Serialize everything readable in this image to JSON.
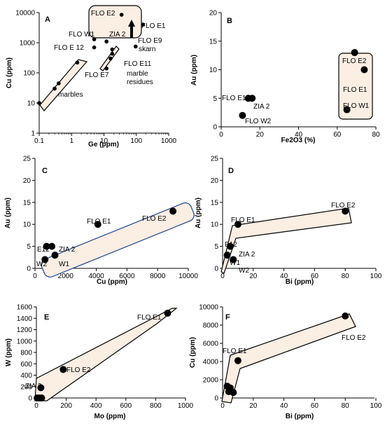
{
  "chart_data": [
    {
      "panel": "A",
      "type": "scatter",
      "xscale": "log",
      "yscale": "log",
      "xlabel": "Ge (ppm)",
      "ylabel": "Cu (ppm)",
      "xlim": [
        0.1,
        1000
      ],
      "ylim": [
        1,
        10000
      ],
      "xticks": [
        "0.1",
        "1",
        "10",
        "100",
        "1000"
      ],
      "yticks": [
        "1",
        "10",
        "100",
        "1000",
        "10000"
      ],
      "points": [
        [
          0.1,
          10
        ],
        [
          0.3,
          30
        ],
        [
          0.4,
          45
        ],
        [
          1.5,
          220
        ],
        [
          5,
          1300
        ],
        [
          5,
          700
        ],
        [
          12,
          1100
        ],
        [
          18,
          600
        ],
        [
          18,
          430
        ],
        [
          35,
          8500
        ],
        [
          95,
          750
        ],
        [
          160,
          4000
        ],
        [
          16,
          300
        ],
        [
          12,
          140
        ]
      ],
      "annotations": [
        "FLO E2",
        "FLO E1",
        "FLO W1",
        "ZIA 2",
        "FLO E 12",
        "FLO E9",
        "skarn",
        "FLO E11",
        "FLO E7",
        "marble",
        "residues",
        "marbles"
      ]
    },
    {
      "panel": "B",
      "type": "scatter",
      "xlabel": "Fe2O3 (%)",
      "ylabel": "Au (ppm)",
      "xlim": [
        0,
        80
      ],
      "ylim": [
        0,
        20
      ],
      "xticks": [
        "0",
        "20",
        "40",
        "60",
        "80"
      ],
      "yticks": [
        "0",
        "5",
        "10",
        "15",
        "20"
      ],
      "points": [
        [
          11,
          2
        ],
        [
          14,
          5
        ],
        [
          16,
          5
        ],
        [
          65,
          3
        ],
        [
          69,
          13
        ],
        [
          74,
          10
        ]
      ],
      "annotations": [
        "FLO E12",
        "ZIA 2",
        "FLO W2",
        "FLO E2",
        "FLO E1",
        "FLO W1"
      ]
    },
    {
      "panel": "C",
      "type": "scatter",
      "xlabel": "Cu (ppm)",
      "ylabel": "Au (ppm)",
      "xlim": [
        0,
        10000
      ],
      "ylim": [
        0,
        25
      ],
      "xticks": [
        "0",
        "2000",
        "4000",
        "6000",
        "8000",
        "10000"
      ],
      "yticks": [
        "0",
        "5",
        "10",
        "15",
        "20",
        "25"
      ],
      "points": [
        [
          650,
          2
        ],
        [
          750,
          5
        ],
        [
          1100,
          5
        ],
        [
          1300,
          3
        ],
        [
          4100,
          10
        ],
        [
          9000,
          13
        ]
      ],
      "annotations": [
        "FLO E1",
        "FLO E2",
        "E12",
        "ZIA 2",
        "W2",
        "W1"
      ]
    },
    {
      "panel": "D",
      "type": "scatter",
      "xlabel": "Bi (ppm)",
      "ylabel": "Au (ppm)",
      "xlim": [
        0,
        100
      ],
      "ylim": [
        0,
        25
      ],
      "xticks": [
        "0",
        "20",
        "40",
        "60",
        "80",
        "100"
      ],
      "yticks": [
        "0",
        "5",
        "10",
        "15",
        "20",
        "25"
      ],
      "points": [
        [
          3,
          3
        ],
        [
          5,
          5
        ],
        [
          7,
          2
        ],
        [
          10,
          10
        ],
        [
          80,
          13
        ]
      ],
      "annotations": [
        "FLO E2",
        "FLO E1",
        "E12",
        "ZIA 2",
        "W1",
        "W2"
      ]
    },
    {
      "panel": "E",
      "type": "scatter",
      "xlabel": "Mo (ppm)",
      "ylabel": "W (ppm)",
      "xlim": [
        0,
        1000
      ],
      "ylim": [
        0,
        1600
      ],
      "xticks": [
        "0",
        "200",
        "400",
        "600",
        "800",
        "1000"
      ],
      "yticks": [
        "0",
        "200",
        "400",
        "600",
        "800",
        "1000",
        "1200",
        "1400",
        "1600"
      ],
      "points": [
        [
          5,
          0
        ],
        [
          20,
          0
        ],
        [
          35,
          0
        ],
        [
          30,
          180
        ],
        [
          180,
          500
        ],
        [
          880,
          1490
        ]
      ],
      "annotations": [
        "FLO E1",
        "FLO E2",
        "ZIA 2"
      ]
    },
    {
      "panel": "F",
      "type": "scatter",
      "xlabel": "Bi (ppm)",
      "ylabel": "Cu (ppm)",
      "xlim": [
        0,
        100
      ],
      "ylim": [
        0,
        10000
      ],
      "xticks": [
        "0",
        "20",
        "40",
        "60",
        "80",
        "100"
      ],
      "yticks": [
        "0",
        "2000",
        "4000",
        "6000",
        "8000",
        "10000"
      ],
      "points": [
        [
          3,
          1300
        ],
        [
          5,
          1100
        ],
        [
          4,
          700
        ],
        [
          7,
          600
        ],
        [
          10,
          4100
        ],
        [
          80,
          9000
        ]
      ],
      "annotations": [
        "FLO E1",
        "FLO E2"
      ]
    }
  ],
  "colors": {
    "fill": "#fbeee3",
    "outline": "#000000",
    "outline_c": "#2e4d8f",
    "marker": "#000000",
    "label_e2_b": "#555555"
  }
}
